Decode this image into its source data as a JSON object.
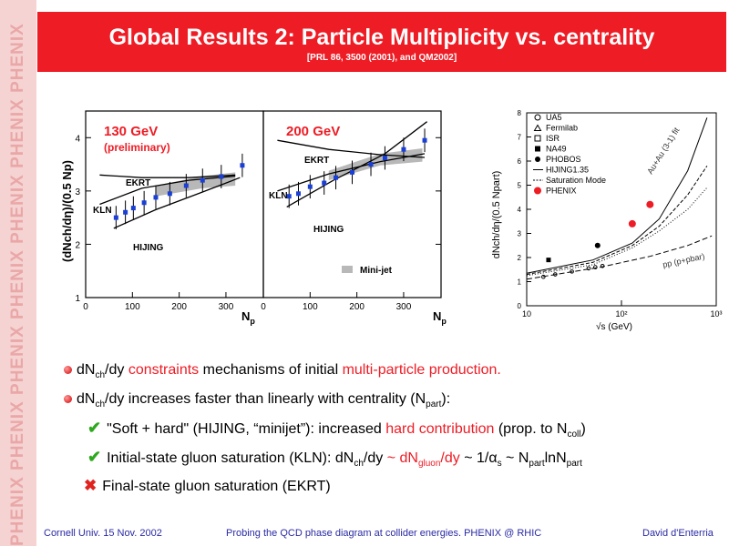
{
  "sidebar": {
    "text": "PHENIX PHENIX PHENIX PHENIX PHENIX PHENIX PHENIX"
  },
  "header": {
    "title": "Global Results 2: Particle Multiplicity vs. centrality",
    "subtitle": "[PRL 86, 3500 (2001), and QM2002]"
  },
  "left_figure": {
    "ylabel": "(dNch/dη)/(0.5 Np)",
    "xlabel": "Np",
    "panel1_label": "130 GeV",
    "panel1_sublabel": "(preliminary)",
    "panel2_label": "200 GeV",
    "models": {
      "ekrt": "EKRT",
      "kln": "KLN",
      "hijing": "HIJING"
    },
    "legend_minijet": "Mini-jet",
    "xticks": [
      "0",
      "100",
      "200",
      "300"
    ],
    "yticks": [
      "1",
      "2",
      "3",
      "4"
    ],
    "colors": {
      "data": "#1a3fd6",
      "band": "#b8b8b8"
    }
  },
  "right_figure": {
    "ylabel": "dNch/dη/(0.5 Npart)",
    "xlabel": "√s (GeV)",
    "legend": [
      "UA5",
      "Fermilab",
      "ISR",
      "NA49",
      "PHOBOS",
      "HIJING1.35",
      "Saturation Mode",
      "PHENIX"
    ],
    "curve_labels": {
      "auau": "Au+Au (3-1) fit",
      "pp": "pp (p+pbar)"
    },
    "yticks": [
      "0",
      "1",
      "2",
      "3",
      "4",
      "5",
      "6",
      "7",
      "8"
    ],
    "xticks": [
      "10",
      "10²",
      "10³"
    ]
  },
  "chart_data": [
    {
      "type": "scatter",
      "title": "130 GeV",
      "subtitle": "(preliminary)",
      "xlabel": "Np",
      "ylabel": "(dNch/dη)/(0.5 Np)",
      "xlim": [
        0,
        380
      ],
      "ylim": [
        1,
        4.5
      ],
      "series": [
        {
          "name": "",
          "x": [
            65,
            85,
            102,
            125,
            150,
            180,
            215,
            250,
            290,
            335
          ],
          "y": [
            2.5,
            2.6,
            2.68,
            2.78,
            2.88,
            2.95,
            3.1,
            3.2,
            3.27,
            3.48
          ]
        }
      ]
    },
    {
      "type": "scatter",
      "title": "200 GeV",
      "xlabel": "Np",
      "ylabel": "(dNch/dη)/(0.5 Np)",
      "xlim": [
        0,
        380
      ],
      "ylim": [
        1,
        4.5
      ],
      "series": [
        {
          "name": "",
          "x": [
            55,
            75,
            100,
            130,
            155,
            190,
            230,
            260,
            300,
            345
          ],
          "y": [
            2.9,
            2.95,
            3.08,
            3.15,
            3.25,
            3.35,
            3.5,
            3.62,
            3.78,
            3.95
          ]
        }
      ]
    },
    {
      "type": "scatter",
      "xlabel": "√s (GeV)",
      "ylabel": "dNch/dη/(0.5 Npart)",
      "xlim": [
        10,
        1000
      ],
      "ylim": [
        0,
        8
      ],
      "series": [
        {
          "name": "NA49",
          "x": [
            17
          ],
          "y": [
            1.9
          ]
        },
        {
          "name": "PHOBOS",
          "x": [
            56
          ],
          "y": [
            2.5
          ]
        },
        {
          "name": "PHENIX",
          "x": [
            130,
            200
          ],
          "y": [
            3.4,
            4.2
          ]
        }
      ]
    }
  ],
  "bullets": [
    {
      "pre": "dN",
      "sub": "ch",
      "a": "/dy ",
      "r1": "constraints",
      "b": " mechanisms of initial ",
      "r2": "multi-particle production."
    },
    {
      "pre": "dN",
      "sub": "ch",
      "a": "/dy increases faster than linearly with centrality (N",
      "sub2": "part",
      "b": "):"
    }
  ],
  "sub_bullets": {
    "soft_hard": {
      "a": "\"Soft + hard\" (HIJING, “minijet”): increased ",
      "r": "hard contribution",
      "b": " (prop. to N",
      "sub": "coll",
      "c": ")"
    },
    "initial": {
      "a": "Initial-state gluon saturation (KLN): dN",
      "sub1": "ch",
      "b": "/dy ",
      "r1": "~ dN",
      "rsub": "gluon",
      "r2": "/dy",
      "c": " ~ 1/α",
      "sub2": "s",
      "d": " ~ N",
      "sub3": "part",
      "e": "lnN",
      "sub4": "part"
    },
    "final": {
      "text": "Final-state gluon saturation (EKRT)"
    }
  },
  "footer": {
    "left": "Cornell Univ. 15 Nov.  2002",
    "center": "Probing the QCD phase diagram at collider energies. PHENIX @ RHIC",
    "right": "David d'Enterria"
  }
}
